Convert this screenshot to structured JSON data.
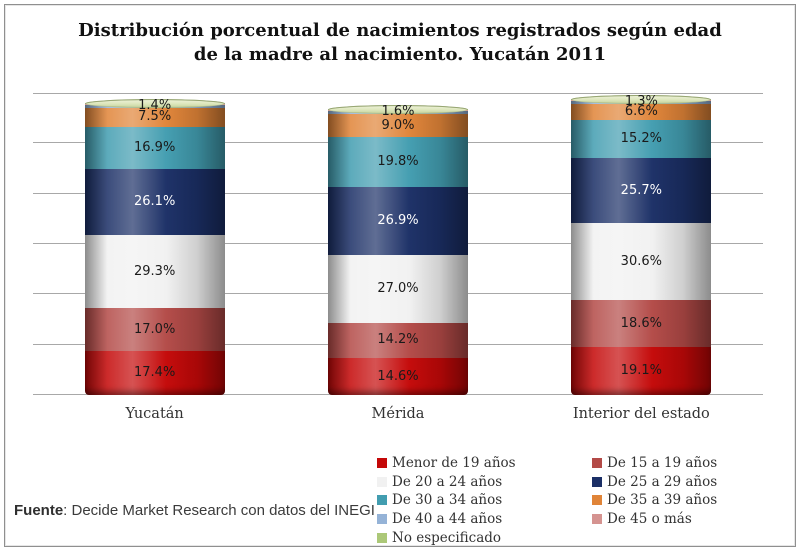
{
  "title": {
    "lines": [
      "Distribución porcentual de nacimientos registrados según edad",
      "de la madre al nacimiento. Yucatán 2011"
    ]
  },
  "source_note": {
    "label": "Fuente",
    "text": ": Decide Market Research con datos del INEGI"
  },
  "chart_data": {
    "type": "bar",
    "variant": "stacked-cylinder",
    "title": "Distribución porcentual de nacimientos registrados según edad de la madre al nacimiento. Yucatán 2011",
    "categories": [
      "Yucatán",
      "Mérida",
      "Interior del estado"
    ],
    "series": [
      {
        "name": "Menor de 19 años",
        "color": "#C40808",
        "values": [
          17.4,
          14.6,
          19.1
        ],
        "labels": true,
        "label_color": "#1a1a1a"
      },
      {
        "name": "De 15 a 19 años",
        "color": "#B34A47",
        "values": [
          17.0,
          14.2,
          18.6
        ],
        "labels": true,
        "label_color": "#1a1a1a"
      },
      {
        "name": "De 20 a 24 años",
        "color": "#F1F1F1",
        "values": [
          29.3,
          27.0,
          30.6
        ],
        "labels": true,
        "label_color": "#1a1a1a"
      },
      {
        "name": "De 25 a 29 años",
        "color": "#1B2F66",
        "values": [
          26.1,
          26.9,
          25.7
        ],
        "labels": true,
        "label_color": "#ffffff"
      },
      {
        "name": "De 30 a 34 años",
        "color": "#429DB0",
        "values": [
          16.9,
          19.8,
          15.2
        ],
        "labels": true,
        "label_color": "#1a1a1a"
      },
      {
        "name": "De 35 a 39 años",
        "color": "#E08438",
        "values": [
          7.5,
          9.0,
          6.6
        ],
        "labels": true,
        "label_color": "#1a1a1a"
      },
      {
        "name": "De 40 a 44 años",
        "color": "#95B3D7",
        "values": [
          1.4,
          1.6,
          1.3
        ],
        "labels": true,
        "label_color": "#1a1a1a"
      },
      {
        "name": "De 45 o más",
        "color": "#D59390",
        "values": [
          0.2,
          0.2,
          0.2
        ],
        "labels": false,
        "estimated": true
      },
      {
        "name": "No especificado",
        "color": "#ACC878",
        "values": [
          0.4,
          0.4,
          0.4
        ],
        "labels": false,
        "estimated": true
      }
    ],
    "ylim": [
      0,
      120
    ],
    "grid_step": 20,
    "grid": true,
    "y_axis_labels_visible": false,
    "legend_position": "bottom-right",
    "legend_columns": 2,
    "gridline_color": "#a8a8a8",
    "label_format": "0.0%"
  }
}
